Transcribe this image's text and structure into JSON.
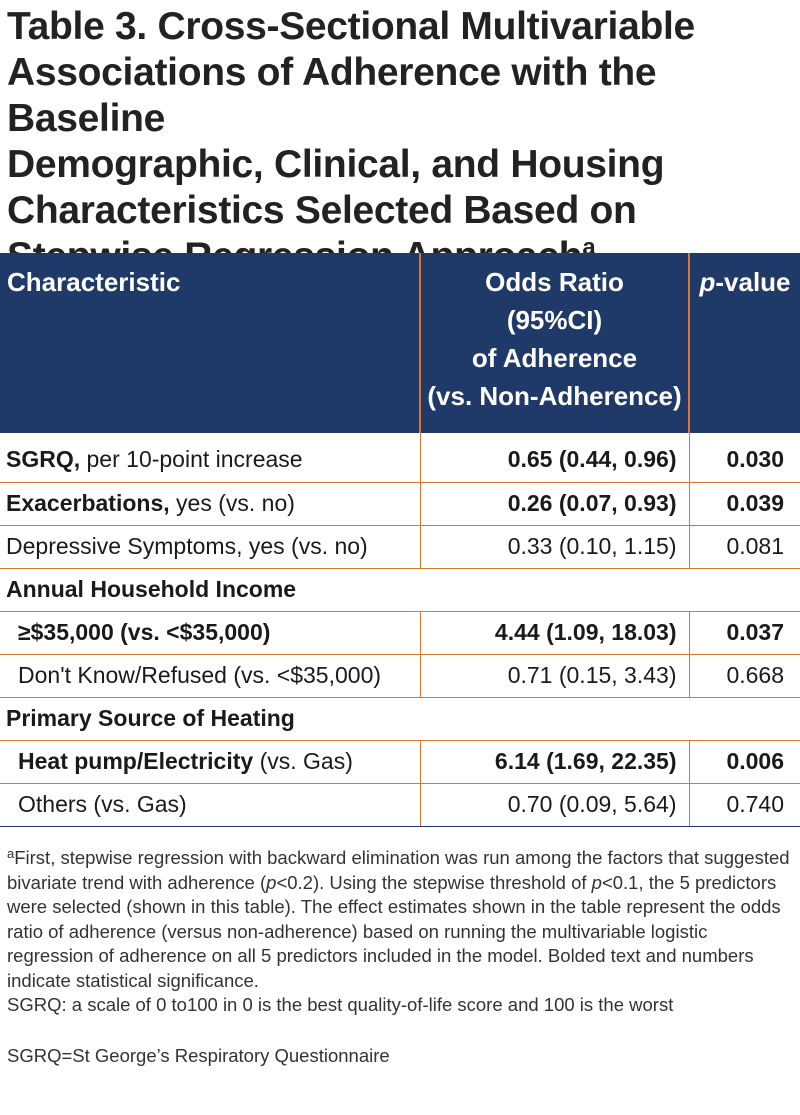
{
  "title": {
    "line1": "Table 3. Cross-Sectional Multivariable",
    "line2": "Associations of Adherence with the Baseline",
    "line3": "Demographic, Clinical, and Housing",
    "line4": "Characteristics Selected Based on",
    "line5": "Stepwise Regression Approach",
    "sup": "a"
  },
  "header": {
    "col1": "Characteristic",
    "col2_line1": "Odds Ratio",
    "col2_line2": "(95%CI)",
    "col2_line3": "of Adherence",
    "col2_line4": "(vs. Non-Adherence)",
    "col3_italic": "p",
    "col3_rest": "-value"
  },
  "rows": [
    {
      "bold": "SGRQ,",
      "rest": " per 10-point increase",
      "or": "0.65 (0.44, 0.96)",
      "p": "0.030"
    },
    {
      "bold": "Exacerbations,",
      "rest": " yes (vs. no)",
      "or": "0.26 (0.07, 0.93)",
      "p": "0.039"
    },
    {
      "bold": "",
      "rest": "Depressive Symptoms, yes (vs. no)",
      "or": "0.33 (0.10, 1.15)",
      "p": "0.081"
    },
    {
      "section": "Annual Household Income"
    },
    {
      "bold": "≥$35,000 (vs. <$35,000)",
      "rest": "",
      "or": "4.44 (1.09, 18.03)",
      "p": "0.037"
    },
    {
      "bold": "",
      "rest": "Don't Know/Refused (vs. <$35,000)",
      "or": "0.71 (0.15, 3.43)",
      "p": "0.668"
    },
    {
      "section": "Primary Source of Heating"
    },
    {
      "bold": "Heat pump/Electricity",
      "rest": " (vs. Gas)",
      "or": "6.14 (1.69, 22.35)",
      "p": "0.006"
    },
    {
      "bold": "",
      "rest": "Others (vs. Gas)",
      "or": "0.70 (0.09, 5.64)",
      "p": "0.740"
    }
  ],
  "footnote": {
    "sup": "a",
    "part1": "First, stepwise regression with backward elimination was run among the factors that suggested bivariate trend with adherence (",
    "p1": "p",
    "part2": "<0.2). Using the stepwise threshold of ",
    "p2": "p",
    "part3": "<0.1, the 5 predictors were selected (shown in this table). The effect estimates shown in the table represent the odds ratio of adherence (versus non-adherence) based on running the multivariable logistic regression of adherence on all 5 predictors included in the model. Bolded text and numbers indicate statistical significance.",
    "sgrq_note": "SGRQ: a scale of 0 to100 in 0 is the best quality-of-life score and 100 is the worst",
    "abbreviation": "SGRQ=St George’s Respiratory Questionnaire"
  }
}
